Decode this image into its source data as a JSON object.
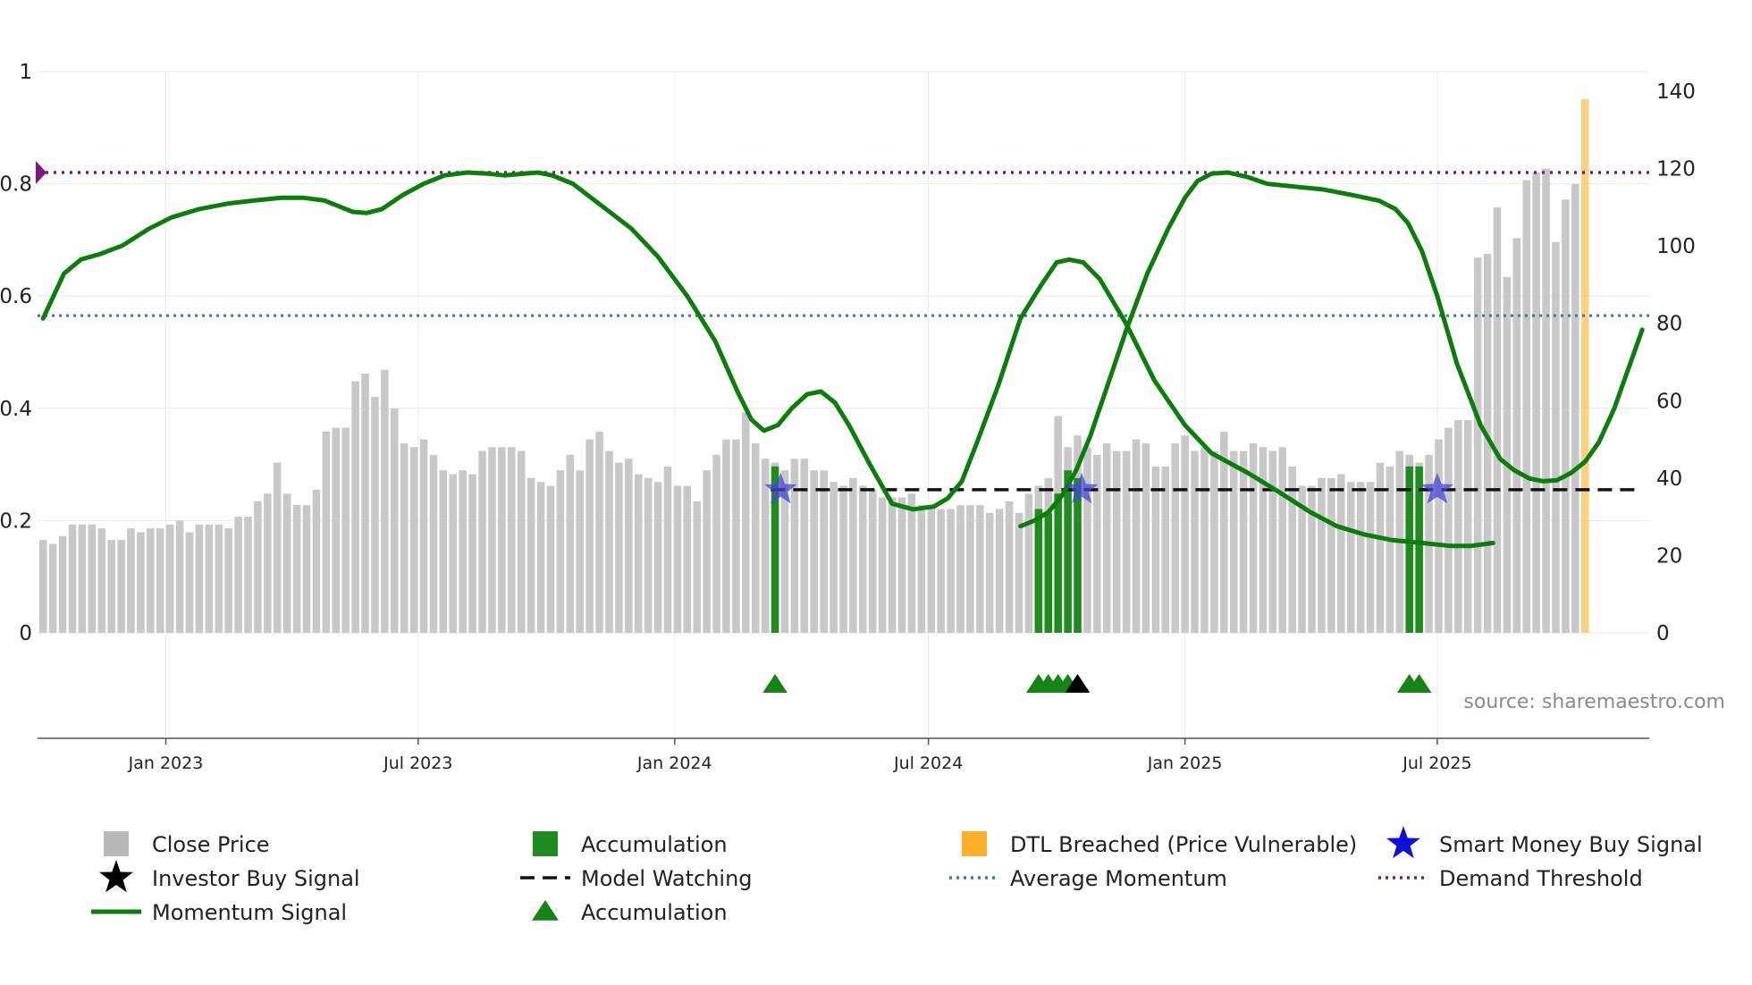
{
  "chart_data": {
    "type": "bar",
    "source_label": "source: sharemaestro.com",
    "left_axis": {
      "ylim": [
        0,
        1
      ],
      "ticks": [
        0,
        0.2,
        0.4,
        0.6,
        0.8,
        1
      ],
      "tick_labels": [
        "0",
        "0.2",
        "0.4",
        "0.6",
        "0.8",
        "1"
      ]
    },
    "right_axis": {
      "ylim": [
        0,
        140
      ],
      "ticks": [
        0,
        20,
        40,
        60,
        80,
        100,
        120,
        140
      ],
      "tick_labels": [
        "0",
        "20",
        "40",
        "60",
        "80",
        "100",
        "120",
        "140"
      ]
    },
    "x_axis": {
      "start": "2022-10-01",
      "end": "2025-11-30",
      "ticks": [
        {
          "date": "2023-01-01",
          "label": "Jan 2023"
        },
        {
          "date": "2023-07-01",
          "label": "Jul 2023"
        },
        {
          "date": "2024-01-01",
          "label": "Jan 2024"
        },
        {
          "date": "2024-07-01",
          "label": "Jul 2024"
        },
        {
          "date": "2025-01-01",
          "label": "Jan 2025"
        },
        {
          "date": "2025-07-01",
          "label": "Jul 2025"
        }
      ]
    },
    "close_price": {
      "name": "Close Price",
      "start": "2022-10-05",
      "step_days": 7,
      "values": [
        24,
        23,
        25,
        28,
        28,
        28,
        27,
        24,
        24,
        27,
        26,
        27,
        27,
        28,
        29,
        26,
        28,
        28,
        28,
        27,
        30,
        30,
        34,
        36,
        44,
        36,
        33,
        33,
        37,
        52,
        53,
        53,
        65,
        67,
        61,
        68,
        58,
        49,
        48,
        50,
        46,
        42,
        41,
        42,
        41,
        47,
        48,
        48,
        48,
        47,
        40,
        39,
        38,
        42,
        46,
        42,
        50,
        52,
        47,
        44,
        45,
        41,
        40,
        39,
        43,
        38,
        38,
        34,
        42,
        46,
        50,
        50,
        57,
        49,
        45,
        44,
        42,
        45,
        45,
        42,
        42,
        39,
        38,
        40,
        38,
        37,
        35,
        35,
        35,
        36,
        33,
        33,
        32,
        32,
        33,
        33,
        33,
        31,
        32,
        34,
        31,
        36,
        38,
        40,
        56,
        48,
        51,
        48,
        46,
        49,
        47,
        47,
        50,
        49,
        43,
        43,
        49,
        51,
        47,
        48,
        47,
        52,
        47,
        47,
        49,
        48,
        47,
        48,
        43,
        38,
        38,
        40,
        40,
        41,
        39,
        39,
        39,
        44,
        43,
        47,
        46,
        44,
        46,
        50,
        53,
        55,
        55,
        97,
        98,
        110,
        92,
        102,
        117,
        119,
        120,
        101,
        112,
        116
      ]
    },
    "accumulation_bars": {
      "name": "Accumulation",
      "color": "#1e8c1e",
      "points": [
        {
          "date": "2024-03-13",
          "value": 43
        },
        {
          "date": "2024-09-18",
          "value": 32
        },
        {
          "date": "2024-09-25",
          "value": 31
        },
        {
          "date": "2024-10-02",
          "value": 36
        },
        {
          "date": "2024-10-09",
          "value": 42
        },
        {
          "date": "2024-10-16",
          "value": 40
        },
        {
          "date": "2025-06-11",
          "value": 43
        },
        {
          "date": "2025-06-18",
          "value": 43
        }
      ]
    },
    "dtl_breached_bars": {
      "name": "DTL Breached (Price Vulnerable)",
      "color": "#ffb12b",
      "points": [
        {
          "date": "2025-10-15",
          "value": 138
        }
      ]
    },
    "momentum_signal": {
      "name": "Momentum Signal",
      "color": "#0b7d0b",
      "points": [
        [
          "2022-10-05",
          0.56
        ],
        [
          "2022-10-20",
          0.64
        ],
        [
          "2022-11-01",
          0.665
        ],
        [
          "2022-11-15",
          0.675
        ],
        [
          "2022-12-01",
          0.69
        ],
        [
          "2022-12-20",
          0.72
        ],
        [
          "2023-01-05",
          0.74
        ],
        [
          "2023-01-25",
          0.755
        ],
        [
          "2023-02-15",
          0.765
        ],
        [
          "2023-03-05",
          0.77
        ],
        [
          "2023-03-25",
          0.775
        ],
        [
          "2023-04-10",
          0.775
        ],
        [
          "2023-04-25",
          0.77
        ],
        [
          "2023-05-05",
          0.76
        ],
        [
          "2023-05-15",
          0.75
        ],
        [
          "2023-05-25",
          0.748
        ],
        [
          "2023-06-05",
          0.755
        ],
        [
          "2023-06-20",
          0.78
        ],
        [
          "2023-07-05",
          0.8
        ],
        [
          "2023-07-20",
          0.815
        ],
        [
          "2023-08-05",
          0.82
        ],
        [
          "2023-08-20",
          0.818
        ],
        [
          "2023-09-01",
          0.815
        ],
        [
          "2023-09-15",
          0.818
        ],
        [
          "2023-09-25",
          0.82
        ],
        [
          "2023-10-05",
          0.815
        ],
        [
          "2023-10-20",
          0.8
        ],
        [
          "2023-11-10",
          0.76
        ],
        [
          "2023-12-01",
          0.72
        ],
        [
          "2023-12-20",
          0.67
        ],
        [
          "2024-01-10",
          0.6
        ],
        [
          "2024-01-30",
          0.52
        ],
        [
          "2024-02-15",
          0.43
        ],
        [
          "2024-02-25",
          0.38
        ],
        [
          "2024-03-05",
          0.36
        ],
        [
          "2024-03-15",
          0.37
        ],
        [
          "2024-03-25",
          0.4
        ],
        [
          "2024-04-05",
          0.425
        ],
        [
          "2024-04-15",
          0.43
        ],
        [
          "2024-04-25",
          0.41
        ],
        [
          "2024-05-05",
          0.37
        ],
        [
          "2024-05-20",
          0.3
        ],
        [
          "2024-06-05",
          0.23
        ],
        [
          "2024-06-20",
          0.22
        ],
        [
          "2024-07-05",
          0.225
        ],
        [
          "2024-07-15",
          0.24
        ],
        [
          "2024-07-25",
          0.27
        ],
        [
          "2024-08-05",
          0.34
        ],
        [
          "2024-08-20",
          0.44
        ],
        [
          "2024-09-05",
          0.56
        ],
        [
          "2024-09-20",
          0.62
        ],
        [
          "2024-10-01",
          0.66
        ],
        [
          "2024-10-10",
          0.665
        ],
        [
          "2024-10-20",
          0.66
        ],
        [
          "2024-11-01",
          0.63
        ],
        [
          "2024-11-20",
          0.55
        ],
        [
          "2024-12-10",
          0.45
        ],
        [
          "2025-01-01",
          0.37
        ],
        [
          "2025-01-20",
          0.32
        ],
        [
          "2025-02-15",
          0.285
        ],
        [
          "2025-03-10",
          0.25
        ],
        [
          "2025-04-01",
          0.215
        ],
        [
          "2025-04-20",
          0.19
        ],
        [
          "2025-05-10",
          0.175
        ],
        [
          "2025-05-30",
          0.165
        ],
        [
          "2025-06-20",
          0.16
        ],
        [
          "2025-07-10",
          0.155
        ],
        [
          "2025-07-25",
          0.155
        ],
        [
          "2025-08-10",
          0.16
        ]
      ]
    },
    "momentum_signal_late": {
      "points": [
        [
          "2024-09-05",
          0.19
        ],
        [
          "2024-09-15",
          0.2
        ],
        [
          "2024-09-25",
          0.215
        ],
        [
          "2024-10-05",
          0.245
        ],
        [
          "2024-10-15",
          0.29
        ],
        [
          "2024-10-25",
          0.35
        ],
        [
          "2024-11-05",
          0.43
        ],
        [
          "2024-11-20",
          0.54
        ],
        [
          "2024-12-05",
          0.64
        ],
        [
          "2024-12-20",
          0.72
        ],
        [
          "2025-01-01",
          0.775
        ],
        [
          "2025-01-10",
          0.805
        ],
        [
          "2025-01-20",
          0.818
        ],
        [
          "2025-02-01",
          0.82
        ],
        [
          "2025-02-15",
          0.812
        ],
        [
          "2025-03-01",
          0.8
        ],
        [
          "2025-03-20",
          0.795
        ],
        [
          "2025-04-10",
          0.79
        ],
        [
          "2025-05-01",
          0.78
        ],
        [
          "2025-05-20",
          0.77
        ],
        [
          "2025-06-01",
          0.755
        ],
        [
          "2025-06-10",
          0.73
        ],
        [
          "2025-06-20",
          0.68
        ],
        [
          "2025-07-01",
          0.6
        ],
        [
          "2025-07-15",
          0.48
        ],
        [
          "2025-08-01",
          0.37
        ],
        [
          "2025-08-15",
          0.31
        ],
        [
          "2025-08-25",
          0.29
        ],
        [
          "2025-09-05",
          0.275
        ],
        [
          "2025-09-15",
          0.27
        ],
        [
          "2025-09-25",
          0.272
        ],
        [
          "2025-10-05",
          0.285
        ],
        [
          "2025-10-15",
          0.305
        ],
        [
          "2025-10-25",
          0.34
        ],
        [
          "2025-11-05",
          0.4
        ],
        [
          "2025-11-15",
          0.47
        ],
        [
          "2025-11-25",
          0.54
        ]
      ]
    },
    "average_momentum": {
      "name": "Average Momentum",
      "value": 0.565,
      "color": "#2b7bb5"
    },
    "demand_threshold": {
      "name": "Demand Threshold",
      "value": 0.82,
      "color": "#7a1a7a"
    },
    "model_watching": {
      "name": "Model Watching",
      "value": 0.255,
      "start": "2024-03-10",
      "end": "2025-11-25"
    },
    "smart_money_buy_signals": {
      "name": "Smart Money Buy Signal",
      "dates": [
        "2024-03-17",
        "2024-10-19",
        "2025-07-01"
      ],
      "value": 0.255
    },
    "accumulation_markers": {
      "name": "Accumulation",
      "dates": [
        "2024-03-13",
        "2024-09-18",
        "2024-09-25",
        "2024-10-02",
        "2024-10-09",
        "2025-06-11",
        "2025-06-18"
      ]
    },
    "investor_buy_markers": {
      "name": "Investor Buy Signal",
      "dates": [
        "2024-10-16"
      ]
    },
    "legend": [
      {
        "label": "Close Price",
        "kind": "square-gray"
      },
      {
        "label": "Accumulation",
        "kind": "square-green"
      },
      {
        "label": "DTL Breached (Price Vulnerable)",
        "kind": "square-orange"
      },
      {
        "label": "Smart Money Buy Signal",
        "kind": "star-blue"
      },
      {
        "label": "Investor Buy Signal",
        "kind": "star-black"
      },
      {
        "label": "Model Watching",
        "kind": "dash-black"
      },
      {
        "label": "Average Momentum",
        "kind": "dot-blue"
      },
      {
        "label": "Demand Threshold",
        "kind": "dot-purple"
      },
      {
        "label": "Momentum Signal",
        "kind": "line-green"
      },
      {
        "label": "Accumulation",
        "kind": "triangle-green"
      }
    ]
  }
}
